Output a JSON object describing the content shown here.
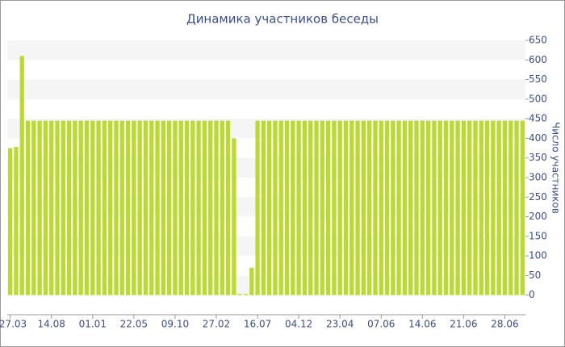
{
  "chart_data": {
    "type": "bar",
    "title": "Динамика участников беседы",
    "y_axis_label": "Число участников",
    "categories": [
      "27.03",
      null,
      null,
      null,
      null,
      null,
      null,
      "14.08",
      null,
      null,
      null,
      null,
      null,
      null,
      "01.01",
      null,
      null,
      null,
      null,
      null,
      null,
      "22.05",
      null,
      null,
      null,
      null,
      null,
      null,
      "09.10",
      null,
      null,
      null,
      null,
      null,
      null,
      "27.02",
      null,
      null,
      null,
      null,
      null,
      null,
      "16.07",
      null,
      null,
      null,
      null,
      null,
      null,
      "04.12",
      null,
      null,
      null,
      null,
      null,
      null,
      "23.04",
      null,
      null,
      null,
      null,
      null,
      null,
      "07.06",
      null,
      null,
      null,
      null,
      null,
      null,
      "14.06",
      null,
      null,
      null,
      null,
      null,
      null,
      "21.06",
      null,
      null,
      null,
      null,
      null,
      null,
      "28.06",
      null,
      null,
      null
    ],
    "values": [
      375,
      378,
      610,
      445,
      445,
      445,
      445,
      445,
      445,
      445,
      445,
      445,
      445,
      445,
      445,
      445,
      445,
      445,
      445,
      445,
      445,
      445,
      445,
      445,
      445,
      445,
      445,
      445,
      445,
      445,
      445,
      445,
      445,
      445,
      445,
      445,
      445,
      445,
      400,
      3,
      3,
      70,
      445,
      445,
      445,
      445,
      445,
      445,
      445,
      445,
      445,
      445,
      445,
      445,
      445,
      445,
      445,
      445,
      445,
      445,
      445,
      445,
      445,
      445,
      445,
      445,
      445,
      445,
      445,
      445,
      445,
      445,
      445,
      445,
      445,
      445,
      445,
      445,
      445,
      445,
      445,
      445,
      445,
      445,
      445,
      445,
      445,
      445
    ],
    "color": "#bcd92f",
    "ylim": [
      -50,
      650
    ],
    "yticks": [
      0,
      50,
      100,
      150,
      200,
      250,
      300,
      350,
      400,
      450,
      500,
      550,
      600,
      650
    ],
    "grid": true
  }
}
